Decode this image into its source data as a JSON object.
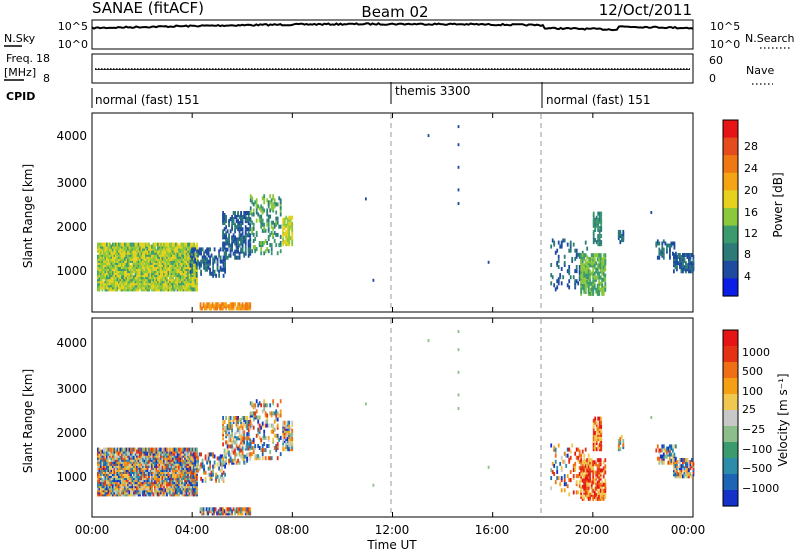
{
  "header": {
    "station": "SANAE (fitACF)",
    "beam": "Beam 02",
    "date": "12/Oct/2011"
  },
  "noise_panel": {
    "left_label": "N.Sky",
    "right_label": "N.Search",
    "left_ticks": [
      "10^5",
      "10^0"
    ],
    "right_ticks": [
      "10^5",
      "10^0"
    ]
  },
  "freq_panel": {
    "left_label_line1": "Freq.",
    "left_label_line2": "[MHz]",
    "right_label": "Nave",
    "left_ticks": [
      "18",
      "8"
    ],
    "right_ticks": [
      "60",
      "0"
    ]
  },
  "cpid_panel": {
    "label": "CPID",
    "segments": [
      {
        "label": "normal (fast) 151",
        "start_hour": 0
      },
      {
        "label": "themis 3300",
        "start_hour": 12
      },
      {
        "label": "normal (fast) 151",
        "start_hour": 18
      }
    ]
  },
  "x_axis": {
    "label": "Time UT",
    "ticks": [
      "00:00",
      "04:00",
      "08:00",
      "12:00",
      "16:00",
      "20:00",
      "00:00"
    ],
    "hours": [
      0,
      4,
      8,
      12,
      16,
      20,
      24
    ]
  },
  "chart_data": [
    {
      "type": "heatmap",
      "ylabel": "Slant Range [km]",
      "yticks": [
        "1000",
        "2000",
        "3000",
        "4000"
      ],
      "ylim": [
        200,
        4600
      ],
      "xlim_hours": [
        0,
        24
      ],
      "colorbar": {
        "label": "Power [dB]",
        "ticks": [
          "4",
          "8",
          "12",
          "16",
          "20",
          "24",
          "28"
        ],
        "colors": [
          "#0a1ee6",
          "#1e4ba0",
          "#2d7a78",
          "#3c9b6e",
          "#8cc83c",
          "#e6d21e",
          "#f5a514",
          "#f07814",
          "#e64b1e",
          "#e61414"
        ]
      },
      "dividers_hours": [
        12,
        18
      ]
    },
    {
      "type": "heatmap",
      "ylabel": "Slant Range [km]",
      "yticks": [
        "1000",
        "2000",
        "3000",
        "4000"
      ],
      "ylim": [
        200,
        4600
      ],
      "xlim_hours": [
        0,
        24
      ],
      "colorbar": {
        "label": "Velocity [m s⁻¹]",
        "ticks": [
          "1000",
          "500",
          "100",
          "25",
          "−25",
          "−100",
          "−500",
          "−1000"
        ],
        "colors": [
          "#1432c8",
          "#1e64b4",
          "#2d8caa",
          "#3c9b6e",
          "#8cbe8c",
          "#c8c8c8",
          "#f0c850",
          "#f5a014",
          "#f06e14",
          "#e63214",
          "#e61414"
        ]
      },
      "dividers_hours": [
        12,
        18
      ]
    }
  ]
}
